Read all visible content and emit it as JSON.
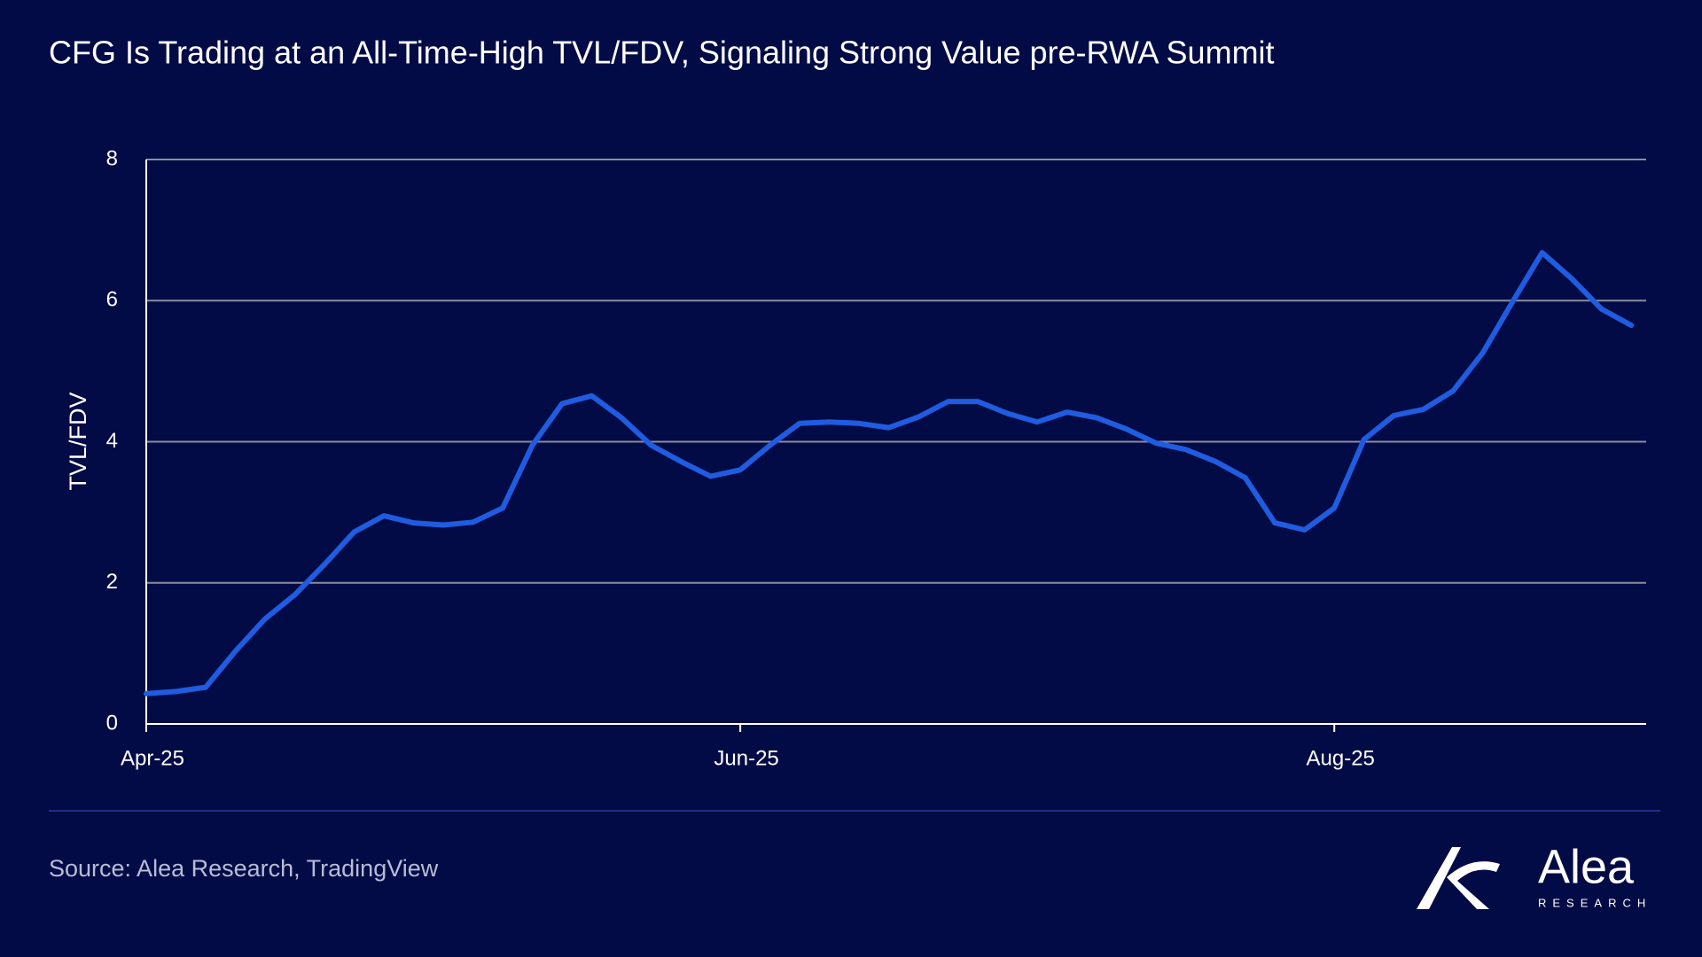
{
  "chart_data": {
    "type": "line",
    "title": "CFG Is Trading at an All-Time-High TVL/FDV, Signaling Strong Value pre-RWA Summit",
    "y_label": "TVL/FDV",
    "categories": [
      "Apr-25",
      null,
      null,
      null,
      null,
      null,
      null,
      null,
      null,
      null,
      null,
      null,
      null,
      null,
      null,
      null,
      null,
      null,
      null,
      null,
      "Jun-25",
      null,
      null,
      null,
      null,
      null,
      null,
      null,
      null,
      null,
      null,
      null,
      null,
      null,
      null,
      null,
      null,
      null,
      null,
      null,
      "Aug-25",
      null,
      null,
      null,
      null,
      null,
      null,
      null,
      null,
      null,
      null
    ],
    "values": [
      0.43,
      0.46,
      0.52,
      1.03,
      1.49,
      1.83,
      2.26,
      2.72,
      2.95,
      2.85,
      2.82,
      2.86,
      3.06,
      3.95,
      4.54,
      4.65,
      4.34,
      3.95,
      3.72,
      3.51,
      3.6,
      3.95,
      4.26,
      4.28,
      4.26,
      4.2,
      4.35,
      4.57,
      4.57,
      4.4,
      4.28,
      4.42,
      4.34,
      4.18,
      3.98,
      3.89,
      3.72,
      3.49,
      2.85,
      2.75,
      3.06,
      4.03,
      4.37,
      4.46,
      4.72,
      5.26,
      5.98,
      6.68,
      6.31,
      5.88,
      5.65
    ],
    "color": "#1f5ce0",
    "ylim": [
      0,
      8
    ],
    "yticks": [
      0,
      2,
      4,
      6,
      8
    ],
    "grid": true,
    "source": "Source: Alea Research, TradingView",
    "brand": "Alea",
    "brand_sub": "RESEARCH"
  }
}
